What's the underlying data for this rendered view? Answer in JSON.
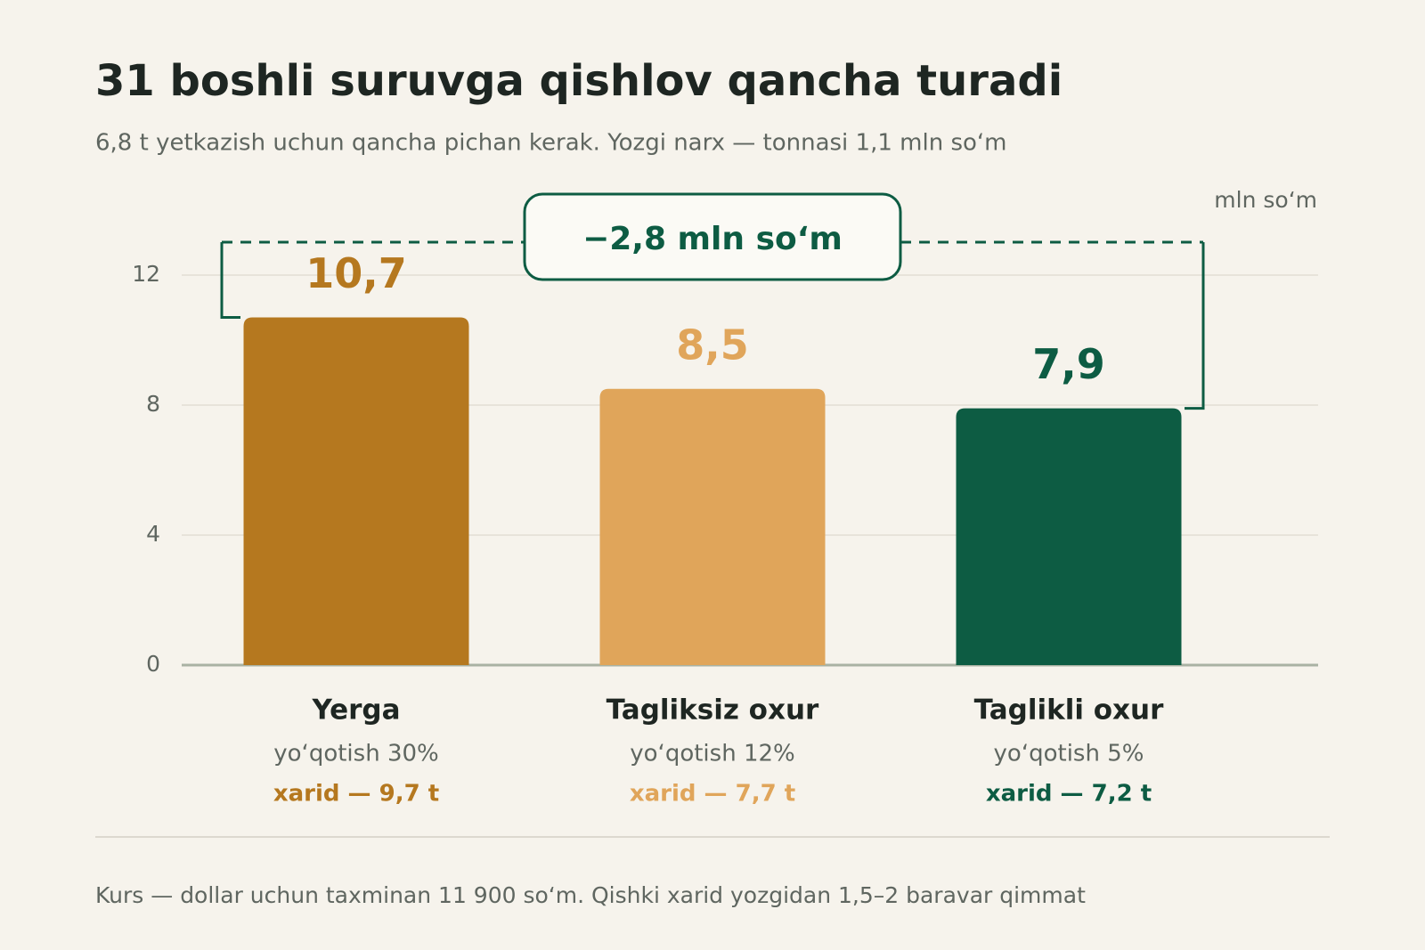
{
  "chart_data": {
    "type": "bar",
    "title": "31 boshli suruvga qishlov qancha turadi",
    "subtitle": "6,8 t yetkazish uchun qancha pichan kerak. Yozgi narx — tonnasi 1,1 mln so‘m",
    "unit_label": "mln so‘m",
    "annotation": "−2,8 mln so‘m",
    "categories": [
      "Yerga",
      "Tagliksiz oxur",
      "Taglikli oxur"
    ],
    "sublabels": [
      "yo‘qotish 30%",
      "yo‘qotish 12%",
      "yo‘qotish 5%"
    ],
    "purchase_labels": [
      "xarid — 9,7 t",
      "xarid — 7,7 t",
      "xarid — 7,2 t"
    ],
    "values": [
      10.7,
      8.5,
      7.9
    ],
    "value_labels": [
      "10,7",
      "8,5",
      "7,9"
    ],
    "colors": [
      "#b5781f",
      "#e0a55a",
      "#0d5c43"
    ],
    "ylim": [
      0,
      12
    ],
    "yticks": [
      0,
      4,
      8,
      12
    ],
    "grid": true,
    "footnote": "Kurs — dollar uchun taxminan 11 900 so‘m. Qishki xarid yozgidan 1,5–2 baravar qimmat"
  }
}
